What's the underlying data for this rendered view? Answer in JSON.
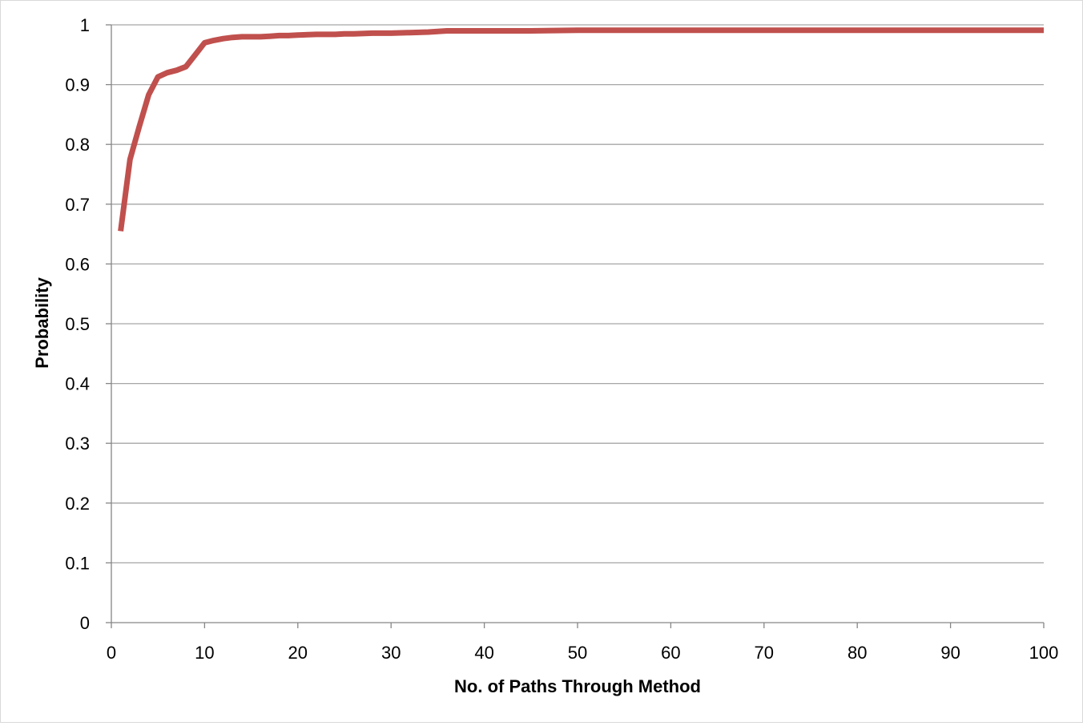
{
  "chart_data": {
    "type": "line",
    "title": "",
    "xlabel": "No. of Paths Through Method",
    "ylabel": "Probability",
    "xlim": [
      0,
      100
    ],
    "ylim": [
      0,
      1
    ],
    "x_ticks": [
      "0",
      "10",
      "20",
      "30",
      "40",
      "50",
      "60",
      "70",
      "80",
      "90",
      "100"
    ],
    "y_ticks": [
      "0",
      "0.1",
      "0.2",
      "0.3",
      "0.4",
      "0.5",
      "0.6",
      "0.7",
      "0.8",
      "0.9",
      "1"
    ],
    "grid": "horizontal",
    "legend": "none",
    "series": [
      {
        "color": "#c0504d",
        "x": [
          1,
          2,
          3,
          4,
          5,
          6,
          7,
          8,
          9,
          10,
          11,
          12,
          13,
          14,
          15,
          16,
          17,
          18,
          19,
          20,
          22,
          24,
          25,
          26,
          28,
          30,
          32,
          34,
          36,
          38,
          40,
          45,
          50,
          60,
          70,
          80,
          90,
          100
        ],
        "y": [
          0.655,
          0.775,
          0.83,
          0.883,
          0.913,
          0.92,
          0.924,
          0.93,
          0.95,
          0.97,
          0.974,
          0.977,
          0.979,
          0.98,
          0.98,
          0.98,
          0.981,
          0.982,
          0.982,
          0.983,
          0.984,
          0.984,
          0.985,
          0.985,
          0.986,
          0.986,
          0.987,
          0.988,
          0.99,
          0.99,
          0.99,
          0.99,
          0.991,
          0.991,
          0.991,
          0.991,
          0.991,
          0.991
        ]
      }
    ]
  }
}
